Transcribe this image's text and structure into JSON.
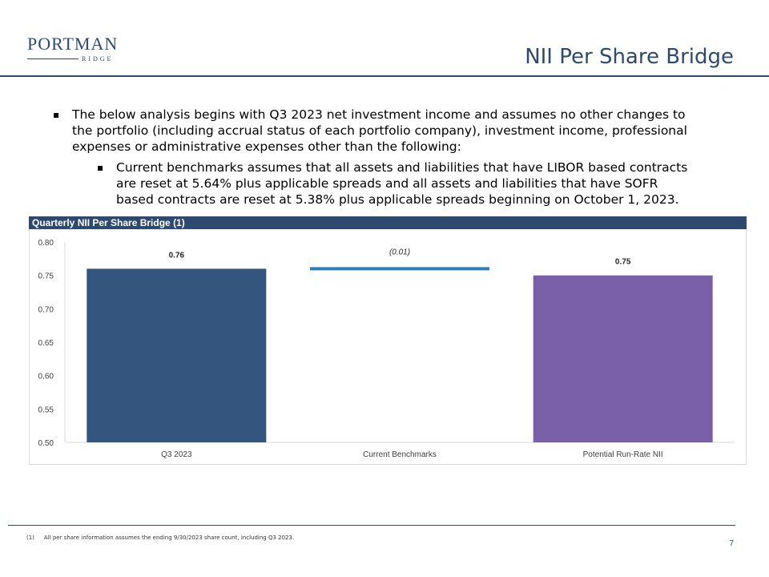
{
  "logo": {
    "main": "PORTMAN",
    "sub": "RIDGE"
  },
  "page": {
    "title": "NII Per Share Bridge",
    "number": "7"
  },
  "bullets": {
    "main": "The below analysis begins with Q3 2023 net investment income and assumes no other changes to the portfolio (including accrual status of each portfolio company), investment income, professional expenses or administrative expenses other than the following:",
    "sub": "Current benchmarks assumes that all assets and liabilities that have LIBOR based contracts are reset at 5.64% plus applicable spreads and all assets and liabilities that have SOFR based contracts are reset at 5.38% plus applicable spreads beginning on October 1, 2023."
  },
  "chart_title": "Quarterly NII Per Share Bridge (1)",
  "chart_data": {
    "type": "bar",
    "subtype": "waterfall",
    "title": "Quarterly NII Per Share Bridge (1)",
    "categories": [
      "Q3 2023",
      "Current Benchmarks",
      "Potential Run-Rate NII"
    ],
    "values": [
      0.76,
      -0.01,
      0.75
    ],
    "bar_kinds": [
      "total",
      "delta",
      "total"
    ],
    "data_labels": [
      "0.76",
      "(0.01)",
      "0.75"
    ],
    "yticks": [
      "0.80",
      "0.75",
      "0.70",
      "0.65",
      "0.60",
      "0.55",
      "0.50"
    ],
    "ylim": [
      0.5,
      0.8
    ],
    "xlabel": "",
    "ylabel": "",
    "colors": [
      "#34557d",
      "#2a7fc0",
      "#7960a8"
    ]
  },
  "footnote": {
    "num": "(1)",
    "text": "All per share information assumes the ending 9/30/2023 share count, including Q3 2023."
  }
}
